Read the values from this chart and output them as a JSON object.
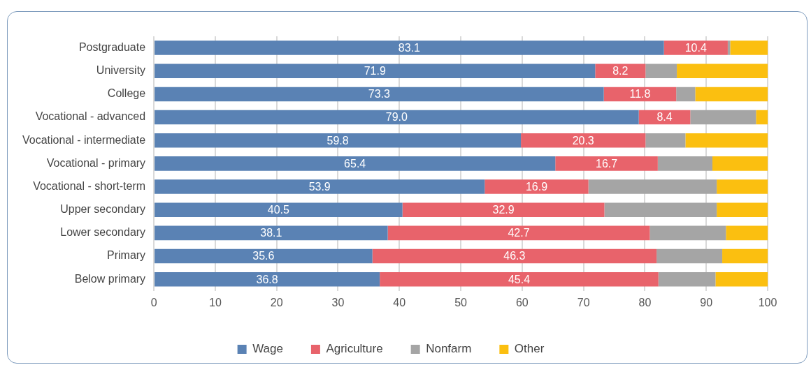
{
  "chart_data": {
    "type": "bar",
    "orientation": "horizontal",
    "stacked": true,
    "categories": [
      "Postgraduate",
      "University",
      "College",
      "Vocational - advanced",
      "Vocational - intermediate",
      "Vocational - primary",
      "Vocational - short-term",
      "Upper secondary",
      "Lower secondary",
      "Primary",
      "Below primary"
    ],
    "series": [
      {
        "name": "Wage",
        "color": "#5a82b4",
        "values": [
          83.1,
          71.9,
          73.3,
          79.0,
          59.8,
          65.4,
          53.9,
          40.5,
          38.1,
          35.6,
          36.8
        ],
        "value_labels": [
          "83.1",
          "71.9",
          "73.3",
          "79.0",
          "59.8",
          "65.4",
          "53.9",
          "40.5",
          "38.1",
          "35.6",
          "36.8"
        ]
      },
      {
        "name": "Agriculture",
        "color": "#e8636b",
        "values": [
          10.4,
          8.2,
          11.8,
          8.4,
          20.3,
          16.7,
          16.9,
          32.9,
          42.7,
          46.3,
          45.4
        ],
        "value_labels": [
          "10.4",
          "8.2",
          "11.8",
          "8.4",
          "20.3",
          "16.7",
          "16.9",
          "32.9",
          "42.7",
          "46.3",
          "45.4"
        ]
      },
      {
        "name": "Nonfarm",
        "color": "#a5a5a5",
        "values": [
          0.4,
          5.1,
          3.1,
          10.7,
          6.5,
          8.9,
          20.9,
          18.3,
          12.4,
          10.7,
          9.3
        ]
      },
      {
        "name": "Other",
        "color": "#fbbf10",
        "values": [
          6.1,
          14.8,
          11.8,
          1.9,
          13.4,
          9.0,
          8.4,
          8.4,
          6.8,
          7.4,
          8.6
        ]
      }
    ],
    "xlim": [
      0,
      100
    ],
    "xticks": [
      0,
      10,
      20,
      30,
      40,
      50,
      60,
      70,
      80,
      90,
      100
    ],
    "grid": "x",
    "legend": "bottom"
  }
}
